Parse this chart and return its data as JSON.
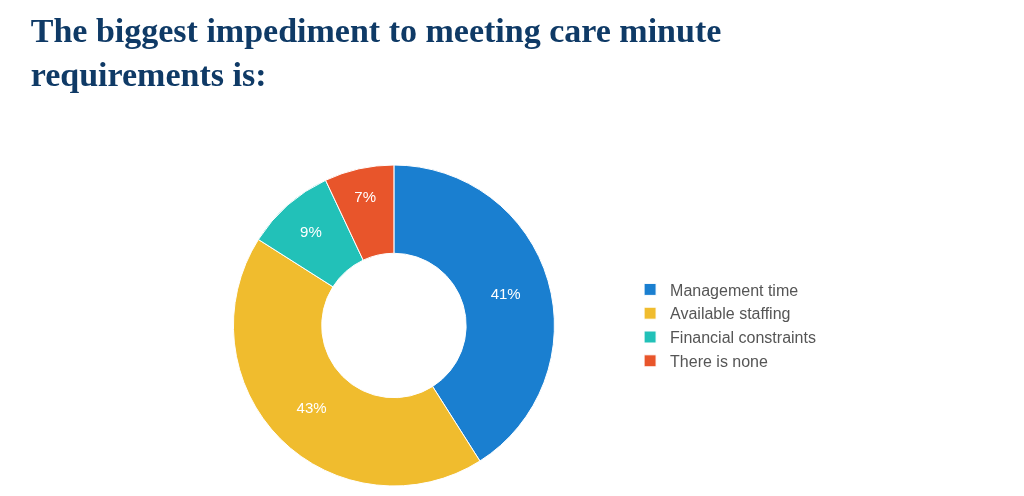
{
  "chart_data": {
    "type": "donut",
    "title": "The biggest impediment to meeting care minute requirements is:",
    "categories": [
      "Management time",
      "Available staffing",
      "Financial constraints",
      "There is none"
    ],
    "values": [
      41,
      43,
      9,
      7
    ],
    "colors": [
      "#1a7fd0",
      "#f0bc2e",
      "#22c1b8",
      "#e8552b"
    ],
    "value_labels": [
      "41%",
      "43%",
      "9%",
      "7%"
    ],
    "legend": "right"
  }
}
